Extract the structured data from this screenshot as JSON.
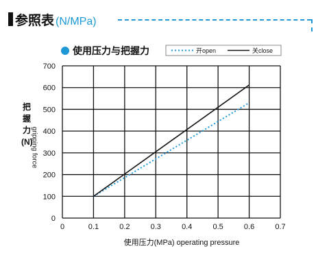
{
  "header": {
    "title": "参照表",
    "unit": "(N/MPa)"
  },
  "colors": {
    "accent": "#1e98d7",
    "close_line": "#111111",
    "open_line": "#1e98d7"
  },
  "chart_data": {
    "type": "line",
    "title": "使用压力与把握力",
    "xlabel": "使用压力(MPa) operating pressure",
    "ylabel_cn": "把握力(N)",
    "ylabel_en": "gripping force",
    "xlim": [
      0,
      0.7
    ],
    "ylim": [
      0,
      700
    ],
    "xticks": [
      "0",
      "0.1",
      "0.2",
      "0.3",
      "0.4",
      "0.5",
      "0.6",
      "0.7"
    ],
    "yticks": [
      "0",
      "100",
      "200",
      "300",
      "400",
      "500",
      "600",
      "700"
    ],
    "grid": true,
    "legend_position": "top-right",
    "series": [
      {
        "name": "开open",
        "style": "dotted",
        "x": [
          0.1,
          0.6
        ],
        "y": [
          100,
          530
        ]
      },
      {
        "name": "关close",
        "style": "solid",
        "x": [
          0.1,
          0.6
        ],
        "y": [
          100,
          612
        ]
      }
    ]
  }
}
